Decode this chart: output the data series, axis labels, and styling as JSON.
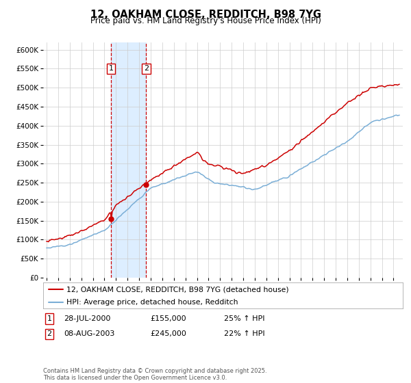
{
  "title": "12, OAKHAM CLOSE, REDDITCH, B98 7YG",
  "subtitle": "Price paid vs. HM Land Registry's House Price Index (HPI)",
  "ylim": [
    0,
    620000
  ],
  "yticks": [
    0,
    50000,
    100000,
    150000,
    200000,
    250000,
    300000,
    350000,
    400000,
    450000,
    500000,
    550000,
    600000
  ],
  "x_start_year": 1995,
  "x_end_year": 2025,
  "sale1_year": 2000.57,
  "sale1_price": 155000,
  "sale1_label": "1",
  "sale2_year": 2003.6,
  "sale2_price": 245000,
  "sale2_label": "2",
  "legend_line1": "12, OAKHAM CLOSE, REDDITCH, B98 7YG (detached house)",
  "legend_line2": "HPI: Average price, detached house, Redditch",
  "table_row1": [
    "1",
    "28-JUL-2000",
    "£155,000",
    "25% ↑ HPI"
  ],
  "table_row2": [
    "2",
    "08-AUG-2003",
    "£245,000",
    "22% ↑ HPI"
  ],
  "footnote": "Contains HM Land Registry data © Crown copyright and database right 2025.\nThis data is licensed under the Open Government Licence v3.0.",
  "hpi_color": "#7aaed6",
  "price_color": "#cc0000",
  "shade_color": "#ddeeff",
  "vline_color": "#cc0000",
  "grid_color": "#cccccc",
  "bg_color": "#ffffff"
}
